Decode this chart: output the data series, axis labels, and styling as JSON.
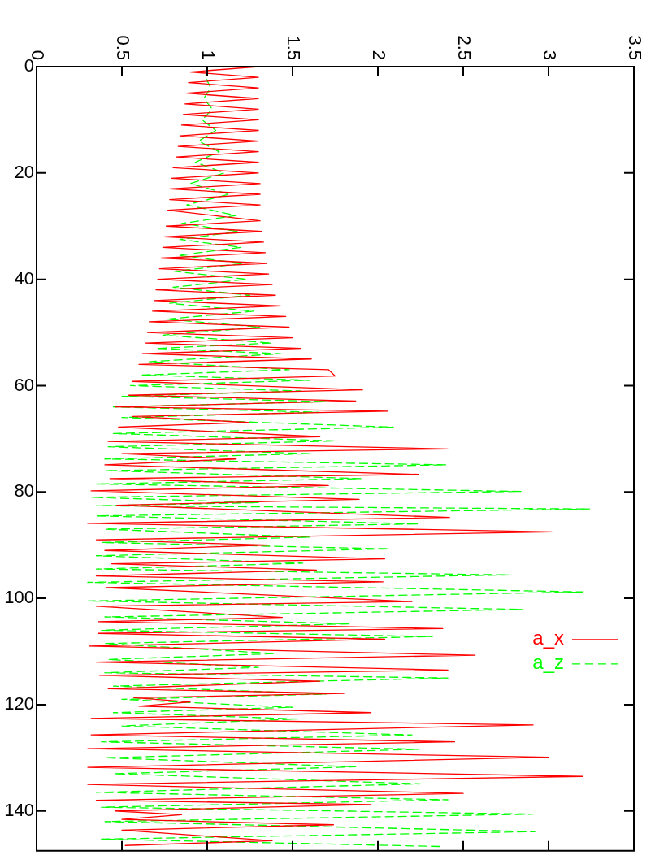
{
  "chart_data": {
    "type": "line",
    "xlim": [
      0,
      3.5
    ],
    "xticks": [
      0,
      0.5,
      1,
      1.5,
      2,
      2.5,
      3,
      3.5
    ],
    "ylim": [
      147.5,
      0
    ],
    "yticks": [
      0,
      20,
      40,
      60,
      80,
      100,
      120,
      140
    ],
    "legend": "bottom right",
    "marker": "none",
    "series": [
      {
        "name": "a_x",
        "color": "#ff0000",
        "line_style": "solid",
        "values": [
          0,
          1,
          2,
          3,
          4,
          5,
          6,
          7,
          8,
          9,
          10,
          11,
          12,
          13,
          14,
          15,
          16,
          17,
          18,
          19,
          20,
          21,
          22,
          23,
          24,
          25,
          26,
          27,
          29,
          30,
          31,
          32,
          33,
          34,
          35,
          36,
          37,
          38,
          39,
          40,
          41,
          42,
          43,
          44,
          45,
          46,
          47,
          48,
          49,
          50,
          51,
          52,
          53,
          54,
          55,
          56,
          57,
          58.2,
          59.2,
          60.8,
          61.8,
          62.9,
          64,
          64.8,
          65.8,
          66.9,
          67.8,
          69.6,
          70.5,
          71.9,
          72.8,
          73.8,
          74.9,
          76.7,
          77.5,
          78.8,
          79.8,
          81.4,
          82.5,
          84.8,
          85.9,
          87.5,
          89,
          90,
          91,
          92.6,
          93.5,
          94.7,
          95.8,
          96.9,
          98,
          100.6,
          101.5,
          103.6,
          104.4,
          105.7,
          106.6,
          107.7,
          109,
          110.7,
          112,
          113.5,
          114.5,
          115.6,
          117,
          117.9,
          118.7,
          119.5,
          120.3,
          121.5,
          122.6,
          123.8,
          125.7,
          127,
          128.3,
          129.9,
          131.8,
          133.5,
          135,
          136.7,
          138,
          138.8,
          140,
          140.7,
          141.6,
          142.6,
          143.6,
          145.6,
          146.5
        ],
        "x": [
          1.3,
          0.9,
          1.3,
          0.89,
          1.3,
          0.88,
          1.3,
          0.87,
          1.3,
          0.86,
          1.3,
          0.85,
          1.3,
          0.84,
          1.3,
          0.83,
          1.3,
          0.82,
          1.3,
          0.8,
          1.3,
          0.79,
          1.31,
          0.78,
          1.31,
          0.78,
          1.31,
          0.77,
          1.31,
          0.76,
          1.32,
          0.75,
          1.33,
          0.74,
          1.34,
          0.73,
          1.35,
          0.72,
          1.36,
          0.71,
          1.38,
          0.7,
          1.4,
          0.69,
          1.43,
          0.68,
          1.46,
          0.66,
          1.48,
          0.65,
          1.5,
          0.64,
          1.55,
          0.62,
          1.61,
          0.6,
          1.71,
          1.75,
          0.56,
          1.91,
          0.54,
          1.87,
          0.46,
          2.06,
          0.56,
          1.24,
          0.48,
          1.66,
          0.42,
          2.41,
          0.5,
          1.17,
          0.4,
          2.24,
          0.43,
          1.71,
          0.32,
          1.89,
          0.47,
          2.42,
          0.3,
          3.02,
          0.35,
          1.36,
          0.4,
          2.04,
          0.44,
          1.64,
          0.35,
          2.03,
          0.41,
          2.2,
          0.35,
          1.44,
          0.36,
          2.38,
          0.36,
          2.04,
          0.31,
          2.57,
          0.35,
          2.41,
          0.37,
          1.66,
          0.42,
          1.8,
          0.57,
          0.9,
          0.6,
          1.96,
          0.32,
          2.91,
          0.32,
          2.45,
          0.3,
          3.0,
          0.3,
          3.2,
          0.3,
          2.5,
          0.35,
          1.96,
          0.46,
          0.85,
          0.5,
          1.74,
          0.5,
          1.38,
          0.52
        ]
      },
      {
        "name": "a_z",
        "color": "#00ff00",
        "line_style": "dashed",
        "values": [
          0,
          2,
          4,
          6,
          8,
          10,
          12,
          14,
          16,
          18,
          20,
          22,
          24,
          26,
          28,
          29.5,
          31,
          32.5,
          34,
          35.5,
          37,
          38.5,
          40,
          41.5,
          43,
          44.5,
          46,
          47.5,
          49,
          50.5,
          52,
          53,
          54,
          55.5,
          57,
          58,
          59,
          60,
          61,
          62,
          63,
          64,
          65,
          66,
          67.8,
          69,
          70.4,
          71.5,
          72.8,
          73.8,
          74.9,
          76,
          77.5,
          78.5,
          79.9,
          81,
          82,
          82.6,
          83.2,
          84.5,
          86,
          87,
          88.5,
          89.5,
          90.7,
          92,
          93.4,
          94.5,
          95.6,
          97,
          98.8,
          100.5,
          102.1,
          103.5,
          104.8,
          106,
          107.2,
          108.5,
          110.4,
          111.5,
          113,
          114,
          115,
          116.5,
          118,
          119,
          120.5,
          121.5,
          122.7,
          124,
          125.7,
          127,
          128.4,
          130,
          131.7,
          133,
          134.9,
          136.5,
          137.9,
          139.3,
          140.6,
          142,
          143.9,
          145.3,
          146.7
        ],
        "x": [
          1.0,
          0.99,
          1.02,
          0.98,
          1.03,
          0.97,
          1.05,
          0.95,
          1.07,
          0.93,
          1.1,
          0.9,
          1.13,
          0.88,
          1.17,
          0.85,
          1.18,
          0.84,
          1.2,
          0.83,
          1.21,
          0.81,
          1.23,
          0.8,
          1.25,
          0.78,
          1.27,
          0.76,
          1.31,
          0.74,
          1.38,
          0.7,
          1.43,
          0.66,
          1.48,
          0.62,
          1.6,
          0.55,
          1.55,
          0.5,
          1.7,
          0.45,
          1.65,
          0.5,
          2.09,
          0.45,
          1.75,
          0.42,
          1.6,
          0.4,
          2.4,
          0.4,
          1.9,
          0.35,
          2.84,
          0.32,
          1.3,
          0.35,
          3.24,
          0.35,
          2.24,
          0.4,
          1.6,
          0.38,
          2.07,
          0.35,
          1.56,
          0.35,
          2.77,
          0.3,
          3.2,
          0.3,
          2.85,
          0.4,
          1.83,
          0.38,
          2.32,
          0.4,
          1.4,
          0.42,
          1.3,
          0.4,
          2.41,
          0.45,
          1.7,
          0.5,
          1.5,
          0.45,
          1.53,
          0.5,
          2.2,
          0.38,
          2.24,
          0.4,
          1.87,
          0.45,
          2.25,
          0.35,
          2.41,
          0.38,
          2.91,
          0.4,
          2.92,
          0.38,
          2.38
        ]
      }
    ]
  }
}
